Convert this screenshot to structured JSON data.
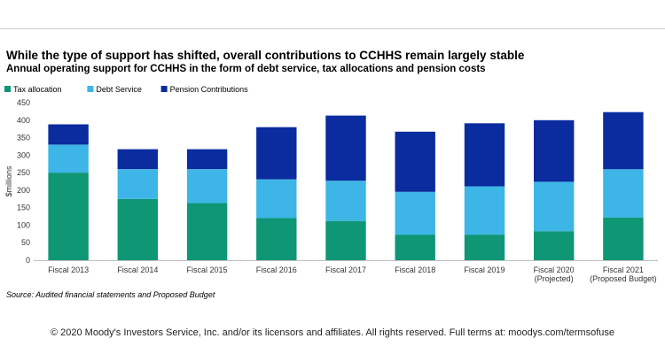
{
  "header": {
    "title": "While the type of support has shifted, overall contributions to CCHHS remain largely stable",
    "subtitle": "Annual operating support for CCHHS in the form of debt service, tax allocations and pension costs"
  },
  "chart_data": {
    "type": "bar",
    "stacked": true,
    "categories": [
      [
        "Fiscal 2013"
      ],
      [
        "Fiscal 2014"
      ],
      [
        "Fiscal 2015"
      ],
      [
        "Fiscal 2016"
      ],
      [
        "Fiscal 2017"
      ],
      [
        "Fiscal 2018"
      ],
      [
        "Fiscal 2019"
      ],
      [
        "Fiscal 2020",
        "(Projected)"
      ],
      [
        "Fiscal 2021",
        "(Proposed Budget)"
      ]
    ],
    "series": [
      {
        "name": "Tax allocation",
        "color": "#0e9675",
        "values": [
          250,
          175,
          163,
          120,
          112,
          73,
          73,
          83,
          122
        ]
      },
      {
        "name": "Debt Service",
        "color": "#3db5e6",
        "values": [
          80,
          85,
          97,
          111,
          115,
          122,
          138,
          141,
          138
        ]
      },
      {
        "name": "Pension Contributions",
        "color": "#0a2c9e",
        "values": [
          58,
          57,
          57,
          149,
          186,
          172,
          180,
          176,
          163
        ]
      }
    ],
    "ylabel": "$millions",
    "xlabel": "",
    "ylim": [
      0,
      450
    ],
    "yticks": [
      0,
      50,
      100,
      150,
      200,
      250,
      300,
      350,
      400,
      450
    ],
    "legend": "top-left",
    "grid": false
  },
  "source": "Source: Audited financial statements and Proposed Budget",
  "footer": "© 2020 Moody's Investors Service, Inc. and/or its licensors and affiliates. All rights reserved. Full terms at: moodys.com/termsofuse"
}
